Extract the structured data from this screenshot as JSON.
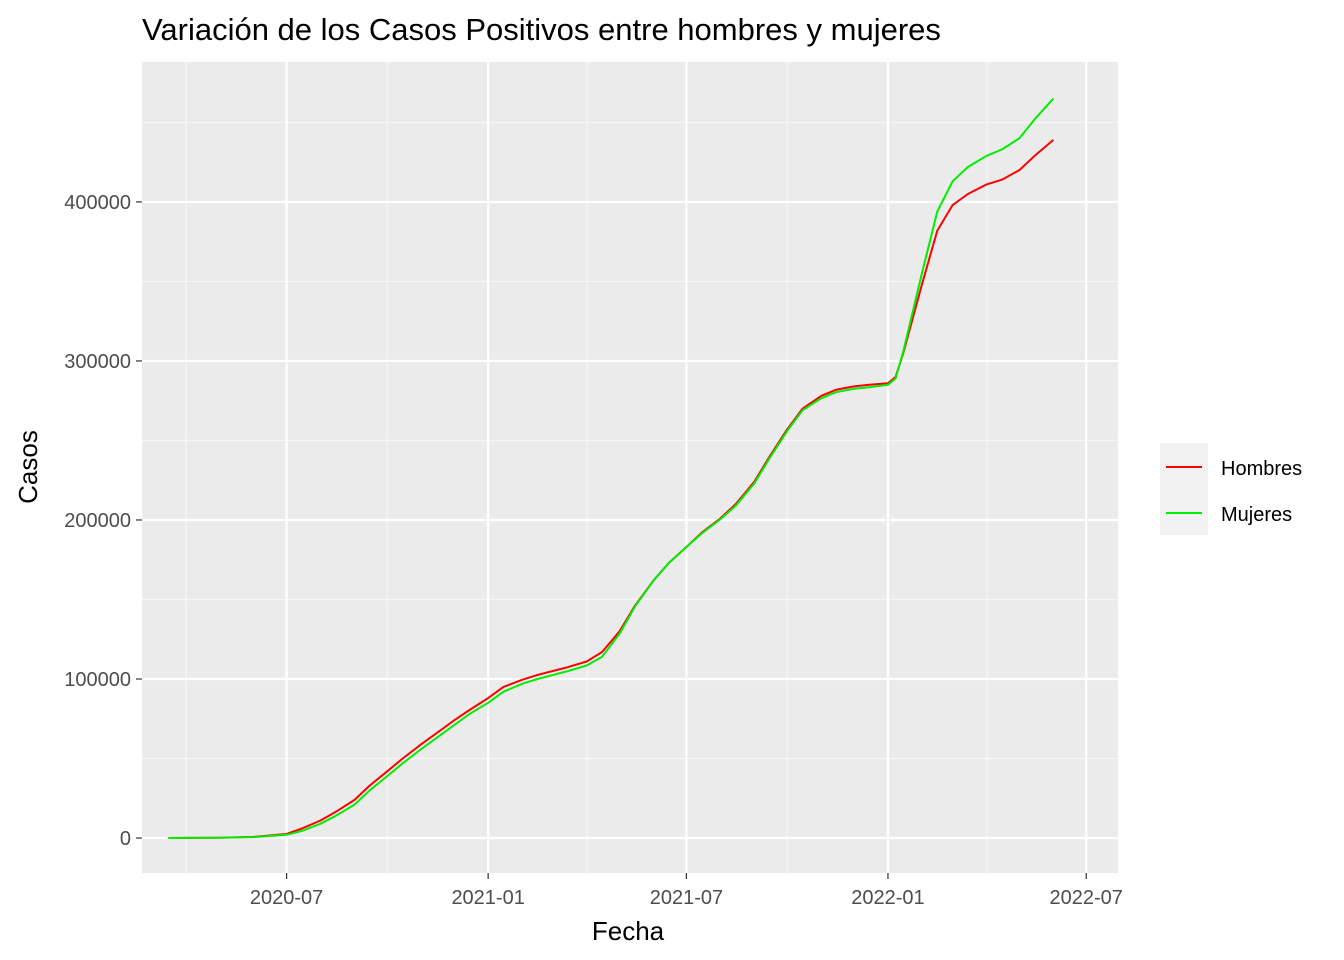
{
  "chart_data": {
    "type": "line",
    "title": "Variación de los Casos Positivos entre hombres y mujeres",
    "xlabel": "Fecha",
    "ylabel": "Casos",
    "x_ticks": [
      "2020-07",
      "2021-01",
      "2021-07",
      "2022-01",
      "2022-07"
    ],
    "y_ticks": [
      "0",
      "100000",
      "200000",
      "300000",
      "400000"
    ],
    "xlim": [
      "2020-02-20",
      "2022-07-30"
    ],
    "ylim": [
      -22000,
      488000
    ],
    "grid": true,
    "legend_position": "right",
    "series": [
      {
        "name": "Hombres",
        "color": "#ff0000",
        "points": [
          [
            "2020-03-15",
            0
          ],
          [
            "2020-04-01",
            50
          ],
          [
            "2020-05-01",
            200
          ],
          [
            "2020-06-01",
            700
          ],
          [
            "2020-07-01",
            2500
          ],
          [
            "2020-07-15",
            6000
          ],
          [
            "2020-08-01",
            11000
          ],
          [
            "2020-08-15",
            16500
          ],
          [
            "2020-09-01",
            24000
          ],
          [
            "2020-09-15",
            33000
          ],
          [
            "2020-10-01",
            42000
          ],
          [
            "2020-10-15",
            50000
          ],
          [
            "2020-11-01",
            59000
          ],
          [
            "2020-11-15",
            66000
          ],
          [
            "2020-12-01",
            74000
          ],
          [
            "2020-12-15",
            80500
          ],
          [
            "2021-01-01",
            88000
          ],
          [
            "2021-01-15",
            95000
          ],
          [
            "2021-02-01",
            99500
          ],
          [
            "2021-02-15",
            102500
          ],
          [
            "2021-03-01",
            105000
          ],
          [
            "2021-03-15",
            107500
          ],
          [
            "2021-04-01",
            111000
          ],
          [
            "2021-04-15",
            117000
          ],
          [
            "2021-05-01",
            130000
          ],
          [
            "2021-05-15",
            146000
          ],
          [
            "2021-06-01",
            162000
          ],
          [
            "2021-06-15",
            173000
          ],
          [
            "2021-07-01",
            183000
          ],
          [
            "2021-07-15",
            192000
          ],
          [
            "2021-08-01",
            201000
          ],
          [
            "2021-08-15",
            210000
          ],
          [
            "2021-09-01",
            224000
          ],
          [
            "2021-09-15",
            240000
          ],
          [
            "2021-10-01",
            257000
          ],
          [
            "2021-10-15",
            270000
          ],
          [
            "2021-11-01",
            278000
          ],
          [
            "2021-11-15",
            282000
          ],
          [
            "2021-12-01",
            284000
          ],
          [
            "2021-12-15",
            285000
          ],
          [
            "2022-01-01",
            286000
          ],
          [
            "2022-01-08",
            290000
          ],
          [
            "2022-01-15",
            305000
          ],
          [
            "2022-02-01",
            348000
          ],
          [
            "2022-02-15",
            382000
          ],
          [
            "2022-03-01",
            398000
          ],
          [
            "2022-03-15",
            405000
          ],
          [
            "2022-04-01",
            411000
          ],
          [
            "2022-04-15",
            414000
          ],
          [
            "2022-05-01",
            420000
          ],
          [
            "2022-05-15",
            429000
          ],
          [
            "2022-06-01",
            439000
          ]
        ]
      },
      {
        "name": "Mujeres",
        "color": "#00ee00",
        "points": [
          [
            "2020-03-15",
            0
          ],
          [
            "2020-04-01",
            50
          ],
          [
            "2020-05-01",
            200
          ],
          [
            "2020-06-01",
            600
          ],
          [
            "2020-07-01",
            2000
          ],
          [
            "2020-07-15",
            4500
          ],
          [
            "2020-08-01",
            9000
          ],
          [
            "2020-08-15",
            14000
          ],
          [
            "2020-09-01",
            21000
          ],
          [
            "2020-09-15",
            30000
          ],
          [
            "2020-10-01",
            39000
          ],
          [
            "2020-10-15",
            47000
          ],
          [
            "2020-11-01",
            56000
          ],
          [
            "2020-11-15",
            63000
          ],
          [
            "2020-12-01",
            71000
          ],
          [
            "2020-12-15",
            78000
          ],
          [
            "2021-01-01",
            85000
          ],
          [
            "2021-01-15",
            92000
          ],
          [
            "2021-02-01",
            97000
          ],
          [
            "2021-02-15",
            100000
          ],
          [
            "2021-03-01",
            102500
          ],
          [
            "2021-03-15",
            105000
          ],
          [
            "2021-04-01",
            108500
          ],
          [
            "2021-04-15",
            114000
          ],
          [
            "2021-05-01",
            128500
          ],
          [
            "2021-05-15",
            145500
          ],
          [
            "2021-06-01",
            162000
          ],
          [
            "2021-06-15",
            173000
          ],
          [
            "2021-07-01",
            183000
          ],
          [
            "2021-07-15",
            191500
          ],
          [
            "2021-08-01",
            200500
          ],
          [
            "2021-08-15",
            209000
          ],
          [
            "2021-09-01",
            223000
          ],
          [
            "2021-09-15",
            239000
          ],
          [
            "2021-10-01",
            256000
          ],
          [
            "2021-10-15",
            269000
          ],
          [
            "2021-11-01",
            276500
          ],
          [
            "2021-11-15",
            280500
          ],
          [
            "2021-12-01",
            282500
          ],
          [
            "2021-12-15",
            283500
          ],
          [
            "2022-01-01",
            285000
          ],
          [
            "2022-01-08",
            289000
          ],
          [
            "2022-01-15",
            306000
          ],
          [
            "2022-02-01",
            355000
          ],
          [
            "2022-02-15",
            394000
          ],
          [
            "2022-03-01",
            413000
          ],
          [
            "2022-03-15",
            422000
          ],
          [
            "2022-04-01",
            429000
          ],
          [
            "2022-04-15",
            433000
          ],
          [
            "2022-05-01",
            440000
          ],
          [
            "2022-05-15",
            452000
          ],
          [
            "2022-06-01",
            465000
          ]
        ]
      }
    ]
  }
}
